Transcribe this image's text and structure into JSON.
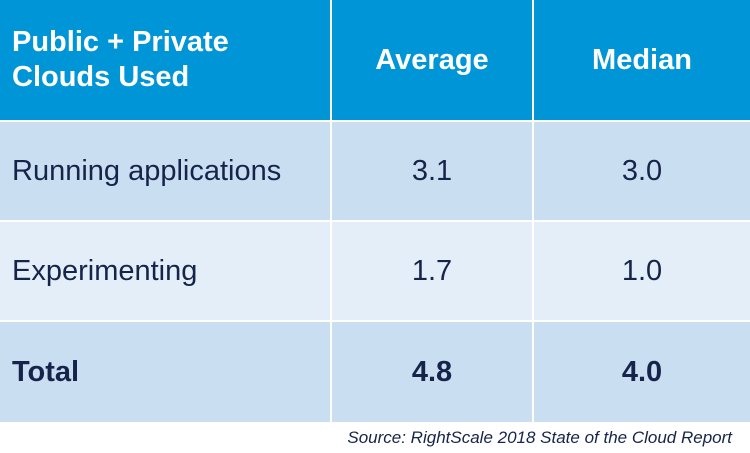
{
  "chart_data": {
    "type": "table",
    "columns": [
      "Public + Private\nClouds Used",
      "Average",
      "Median"
    ],
    "rows": [
      {
        "label": "Running applications",
        "average": "3.1",
        "median": "3.0"
      },
      {
        "label": "Experimenting",
        "average": "1.7",
        "median": "1.0"
      },
      {
        "label": "Total",
        "average": "4.8",
        "median": "4.0"
      }
    ],
    "source": "Source: RightScale 2018 State of the Cloud Report"
  },
  "colors": {
    "header_bg": "#0095d6",
    "header_text": "#ffffff",
    "row_dark_bg": "#c9def1",
    "row_light_bg": "#e3eef9",
    "body_text": "#17244a"
  }
}
